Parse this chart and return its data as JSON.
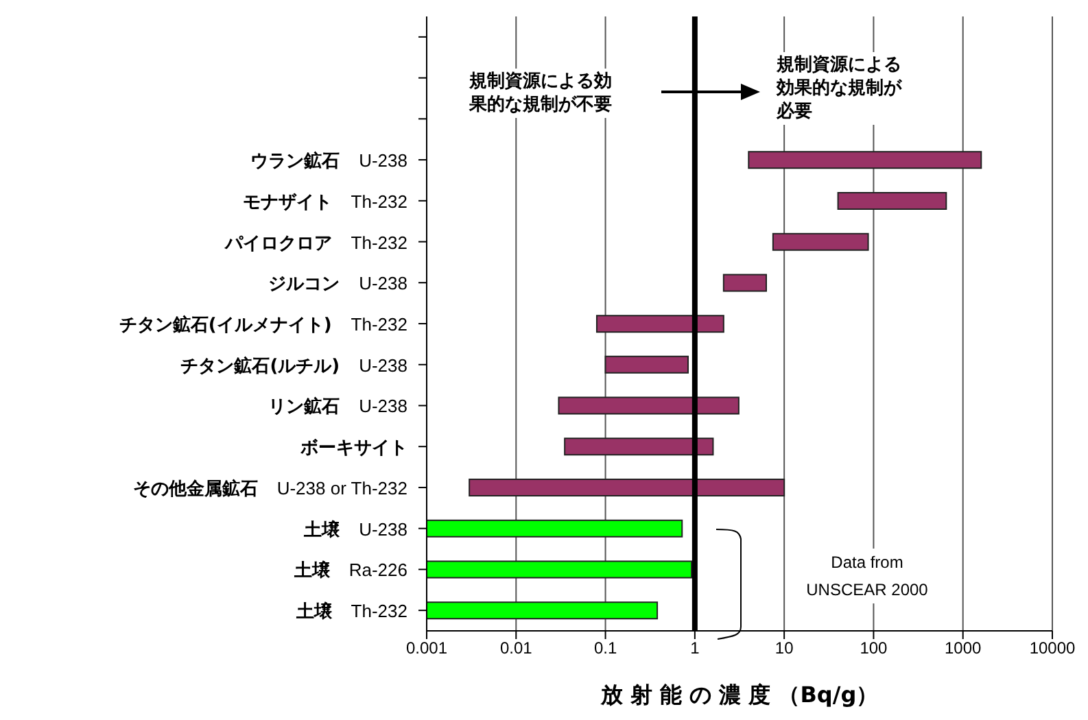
{
  "chart_data": {
    "type": "bar",
    "orientation": "horizontal",
    "xlabel": "放 射 能 の 濃 度 （Bq/g）",
    "categories": [
      null,
      null,
      null,
      "ウラン鉱石\tU-238",
      "モナザイト\tTh-232",
      "パイロクロア\tTh-232",
      "ジルコン\tU-238",
      "チタン鉱石(イルメナイト)\tTh-232",
      "チタン鉱石(ルチル)\tU-238",
      "リン鉱石\tU-238",
      "ボーキサイト",
      "その他金属鉱石\tU-238 or Th-232",
      "土壌\tU-238",
      "土壌\tRa-226",
      "土壌\tTh-232"
    ],
    "base": [
      null,
      null,
      null,
      4,
      40,
      7.5,
      2.1,
      0.08,
      0.1,
      0.03,
      0.035,
      0.003,
      0.001,
      0.001,
      0.001
    ],
    "values": [
      null,
      null,
      null,
      1596,
      610,
      79.5,
      4.2,
      2.02,
      0.74,
      3.07,
      1.565,
      9.997,
      0.719,
      0.919,
      0.379
    ],
    "colors": [
      "#993366",
      "#993366",
      "#993366",
      "#993366",
      "#993366",
      "#993366",
      "#993366",
      "#993366",
      "#993366",
      "#993366",
      "#993366",
      "#993366",
      "#00ff00",
      "#00ff00",
      "#00ff00"
    ],
    "log": "x",
    "xlim": [
      0.001,
      10000
    ],
    "xticks": [
      0.001,
      0.01,
      0.1,
      1,
      10,
      100,
      1000,
      10000
    ],
    "grid": "x",
    "ref_lines": [
      {
        "axis": "x",
        "value": 1,
        "color": "#000000"
      }
    ],
    "annotations": [
      "規制資源による効果的な規制が不要",
      "規制資源による効果的な規制が必要",
      "Data from UNSCEAR 2000"
    ]
  }
}
